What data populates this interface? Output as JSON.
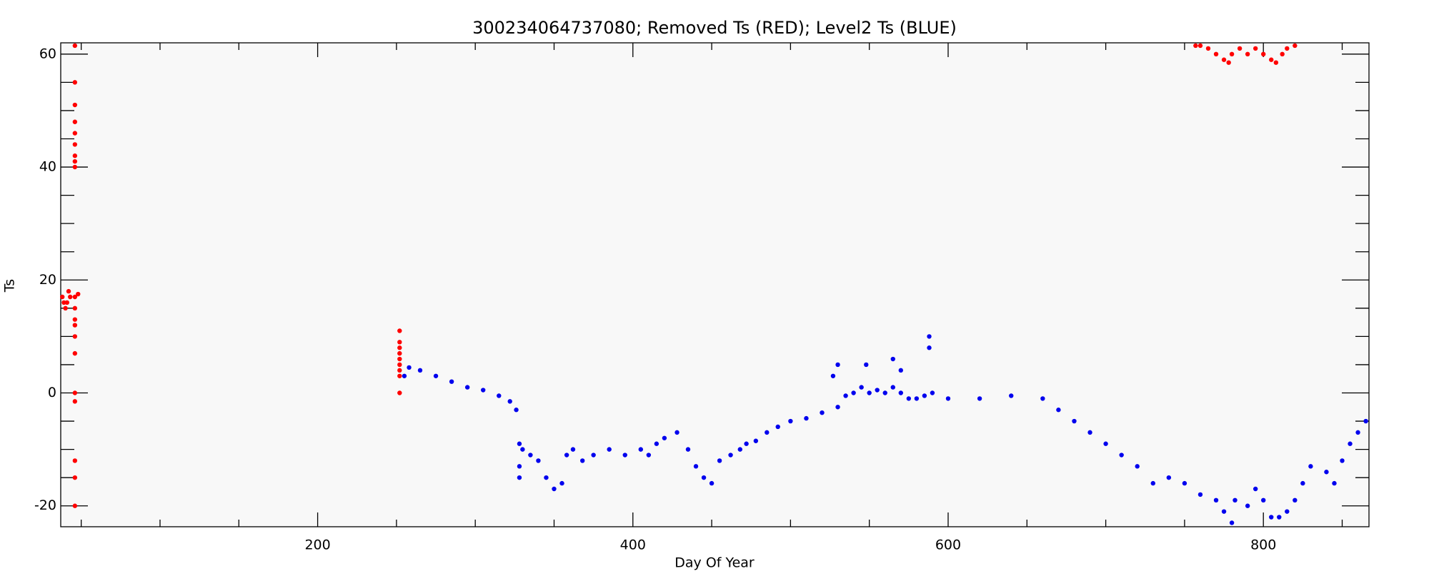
{
  "chart_data": {
    "type": "scatter",
    "title": "300234064737080; Removed Ts (RED); Level2 Ts (BLUE)",
    "xlabel": "Day Of Year",
    "ylabel": "Ts",
    "xlim": [
      37,
      867
    ],
    "ylim": [
      -23.7,
      62
    ],
    "xticks": [
      200,
      400,
      600,
      800
    ],
    "yticks": [
      -20,
      0,
      20,
      40,
      60
    ],
    "minor_xticks": [
      50,
      100,
      150,
      250,
      300,
      350,
      450,
      500,
      550,
      650,
      700,
      750,
      850
    ],
    "minor_yticks": [
      -15,
      -10,
      -5,
      5,
      10,
      15,
      25,
      30,
      35,
      45,
      50,
      55
    ],
    "series": [
      {
        "color": "#ff0000",
        "x": [
          46,
          46,
          46,
          46,
          46,
          46,
          46,
          46,
          46,
          46,
          46,
          46,
          46,
          46,
          46,
          46,
          46,
          46,
          46,
          46,
          38,
          39,
          40,
          41,
          42,
          43,
          48,
          252,
          252,
          252,
          252,
          252,
          252,
          252,
          252,
          252,
          757,
          760,
          765,
          770,
          775,
          778,
          780,
          785,
          790,
          795,
          800,
          805,
          808,
          812,
          815,
          820
        ],
        "values": [
          61.5,
          55,
          51,
          48,
          46,
          44,
          42,
          41,
          40,
          17,
          15,
          13,
          12,
          10,
          7,
          0,
          -1.5,
          -12,
          -15,
          -20,
          17,
          16,
          15,
          16,
          18,
          17,
          17.5,
          11,
          9,
          8,
          7,
          6,
          5,
          4,
          3,
          0,
          61.5,
          61.5,
          61,
          60,
          59,
          58.5,
          60,
          61,
          60,
          61,
          60,
          59,
          58.5,
          60,
          61,
          61.5
        ]
      },
      {
        "color": "#0000ee",
        "x": [
          255,
          258,
          265,
          275,
          285,
          295,
          305,
          315,
          322,
          326,
          328,
          330,
          335,
          340,
          345,
          350,
          355,
          358,
          362,
          368,
          375,
          385,
          395,
          405,
          410,
          415,
          420,
          428,
          435,
          440,
          445,
          450,
          455,
          462,
          468,
          472,
          478,
          485,
          492,
          500,
          510,
          520,
          530,
          535,
          540,
          545,
          550,
          555,
          560,
          565,
          570,
          575,
          580,
          585,
          590,
          600,
          620,
          640,
          660,
          670,
          680,
          690,
          700,
          710,
          720,
          730,
          740,
          750,
          760,
          770,
          775,
          780,
          782,
          790,
          795,
          800,
          805,
          810,
          815,
          820,
          825,
          830,
          840,
          845,
          850,
          855,
          860,
          865,
          527,
          530,
          548,
          565,
          588,
          588,
          328,
          328,
          570
        ],
        "values": [
          3,
          4.5,
          4,
          3,
          2,
          1,
          0.5,
          -0.5,
          -1.5,
          -3,
          -9,
          -10,
          -11,
          -12,
          -15,
          -17,
          -16,
          -11,
          -10,
          -12,
          -11,
          -10,
          -11,
          -10,
          -11,
          -9,
          -8,
          -7,
          -10,
          -13,
          -15,
          -16,
          -12,
          -11,
          -10,
          -9,
          -8.5,
          -7,
          -6,
          -5,
          -4.5,
          -3.5,
          -2.5,
          -0.5,
          0,
          1,
          0,
          0.5,
          0,
          1,
          0,
          -1,
          -1,
          -0.5,
          0,
          -1,
          -1,
          -0.5,
          -1,
          -3,
          -5,
          -7,
          -9,
          -11,
          -13,
          -16,
          -15,
          -16,
          -18,
          -19,
          -21,
          -23,
          -19,
          -20,
          -17,
          -19,
          -22,
          -22,
          -21,
          -19,
          -16,
          -13,
          -14,
          -16,
          -12,
          -9,
          -7,
          -5,
          3,
          5,
          5,
          6,
          10,
          8,
          -13,
          -15,
          4
        ]
      }
    ]
  }
}
